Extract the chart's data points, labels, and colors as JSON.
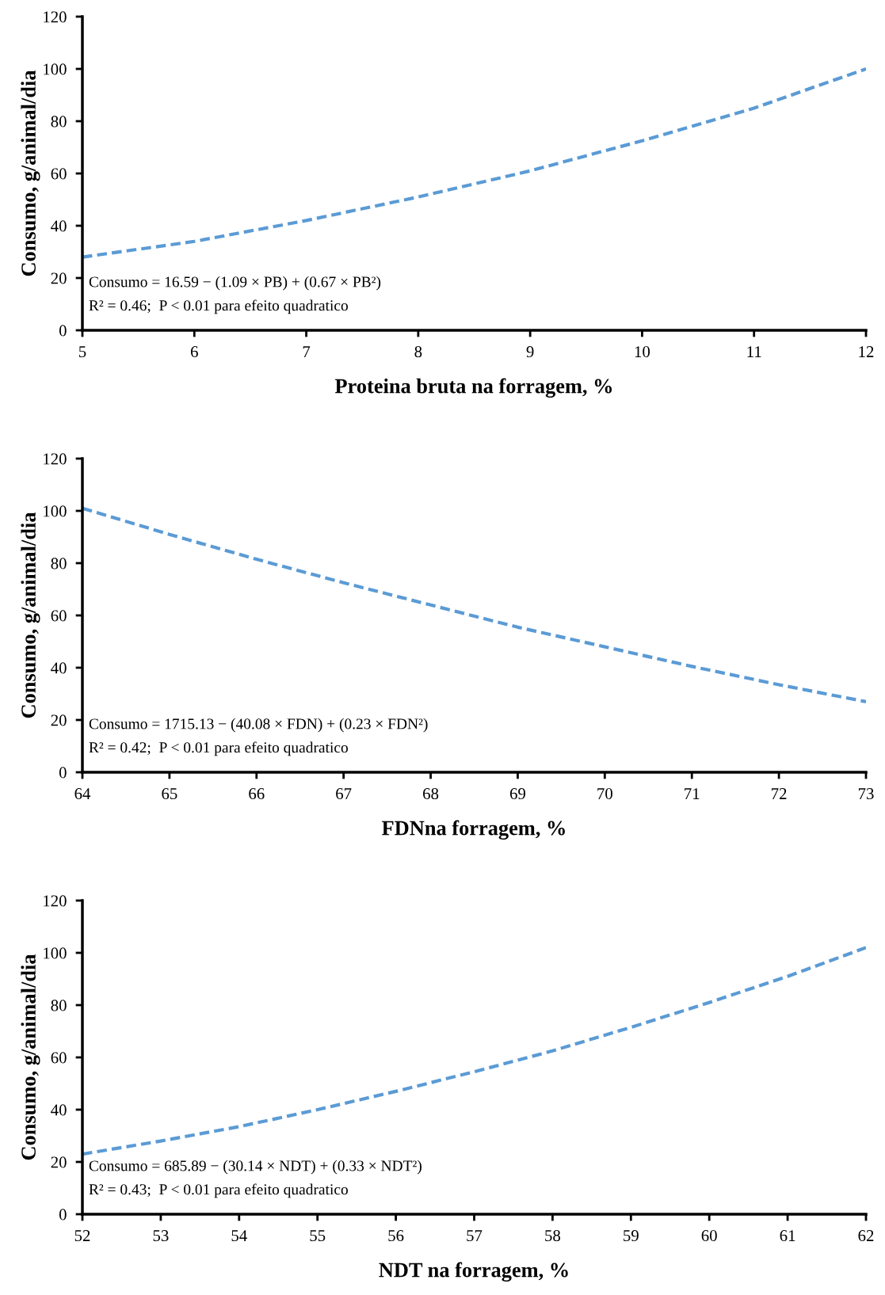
{
  "chart_data": [
    {
      "type": "line",
      "xlabel": "Proteina bruta na forragem, %",
      "ylabel": "Consumo, g/animal/dia",
      "x": [
        5,
        6,
        7,
        8,
        9,
        10,
        11,
        12
      ],
      "series": [
        {
          "color": "#5b9bd5",
          "values": [
            28,
            34,
            42,
            51,
            61,
            72.5,
            85,
            100
          ]
        }
      ],
      "line_style": "dashed",
      "marker": "none",
      "grid": false,
      "legend": false,
      "xlim": [
        5,
        12
      ],
      "xticks": [
        5,
        6,
        7,
        8,
        9,
        10,
        11,
        12
      ],
      "ylim": [
        0,
        120
      ],
      "yticks": [
        0,
        20,
        40,
        60,
        80,
        100,
        120
      ],
      "annotations": [
        "Consumo = 16.59 − (1.09 × PB) + (0.67 × PB²)",
        "R² = 0.46;  P < 0.01 para efeito quadratico"
      ]
    },
    {
      "type": "line",
      "xlabel": "FDNna forragem, %",
      "ylabel": "Consumo, g/animal/dia",
      "x": [
        64,
        65,
        66,
        67,
        68,
        69,
        70,
        71,
        72,
        73
      ],
      "series": [
        {
          "color": "#5b9bd5",
          "values": [
            101,
            91,
            81.5,
            72.5,
            64,
            55.5,
            48,
            40.5,
            33.5,
            27
          ]
        }
      ],
      "line_style": "dashed",
      "marker": "none",
      "grid": false,
      "legend": false,
      "xlim": [
        64,
        73
      ],
      "xticks": [
        64,
        65,
        66,
        67,
        68,
        69,
        70,
        71,
        72,
        73
      ],
      "ylim": [
        0,
        120
      ],
      "yticks": [
        0,
        20,
        40,
        60,
        80,
        100,
        120
      ],
      "annotations": [
        "Consumo = 1715.13 − (40.08 × FDN) + (0.23 × FDN²)",
        "R² = 0.42;  P < 0.01 para efeito quadratico"
      ]
    },
    {
      "type": "line",
      "xlabel": "NDT na forragem, %",
      "ylabel": "Consumo, g/animal/dia",
      "x": [
        52,
        53,
        54,
        55,
        56,
        57,
        58,
        59,
        60,
        61,
        62
      ],
      "series": [
        {
          "color": "#5b9bd5",
          "values": [
            23,
            28,
            33.5,
            40,
            47,
            54.5,
            62.5,
            71.5,
            81,
            91,
            102
          ]
        }
      ],
      "line_style": "dashed",
      "marker": "none",
      "grid": false,
      "legend": false,
      "xlim": [
        52,
        62
      ],
      "xticks": [
        52,
        53,
        54,
        55,
        56,
        57,
        58,
        59,
        60,
        61,
        62
      ],
      "ylim": [
        0,
        120
      ],
      "yticks": [
        0,
        20,
        40,
        60,
        80,
        100,
        120
      ],
      "annotations": [
        "Consumo = 685.89 − (30.14 × NDT) + (0.33 × NDT²)",
        "R² = 0.43;  P < 0.01 para efeito quadratico"
      ]
    }
  ]
}
